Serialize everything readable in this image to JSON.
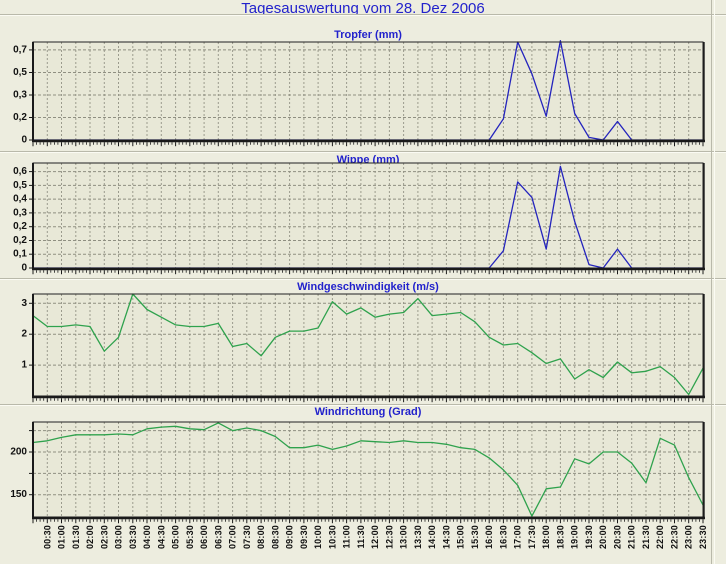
{
  "page": {
    "title": "Tagesauswertung vom 28. Dez 2006"
  },
  "theme": {
    "page_bg": "#ededdf",
    "plot_bg": "#e8e8d7",
    "grid_vertical": "#9b9b8d",
    "grid_horizontal": "#8f8f81",
    "axis_color": "#1a1a1a",
    "title_color": "#2222cc",
    "rain_line_color": "#2424bd",
    "wind_line_color": "#2fa24d"
  },
  "x_axis": {
    "tick_interval_minutes": 30,
    "first_data_point_time": "00:00",
    "tick_labels": [
      "00:30",
      "01:00",
      "01:30",
      "02:00",
      "02:30",
      "03:00",
      "03:30",
      "04:00",
      "04:30",
      "05:00",
      "05:30",
      "06:00",
      "06:30",
      "07:00",
      "07:30",
      "08:00",
      "08:30",
      "09:00",
      "09:30",
      "10:00",
      "10:30",
      "11:00",
      "11:30",
      "12:00",
      "12:30",
      "13:00",
      "13:30",
      "14:00",
      "14:30",
      "15:00",
      "15:30",
      "16:00",
      "16:30",
      "17:00",
      "17:30",
      "18:00",
      "18:30",
      "19:00",
      "19:30",
      "20:00",
      "20:30",
      "21:00",
      "21:30",
      "22:00",
      "22:30",
      "23:00",
      "23:30"
    ]
  },
  "chart_data": [
    {
      "id": "tropfer",
      "type": "line",
      "title": "Tropfer (mm)",
      "unit": "mm",
      "line_color": "#2424bd",
      "ylim": [
        0,
        0.74
      ],
      "y_ticks": [
        {
          "label": "0,7",
          "value": 0.68
        },
        {
          "label": "0,5",
          "value": 0.51
        },
        {
          "label": "0,3",
          "value": 0.34
        },
        {
          "label": "0,2",
          "value": 0.17
        },
        {
          "label": "0",
          "value": 0
        }
      ],
      "x": {
        "start": "00:00",
        "step_minutes": 30,
        "points": 48
      },
      "values": [
        0,
        0,
        0,
        0,
        0,
        0,
        0,
        0,
        0,
        0,
        0,
        0,
        0,
        0,
        0,
        0,
        0,
        0,
        0,
        0,
        0,
        0,
        0,
        0,
        0,
        0,
        0,
        0,
        0,
        0,
        0,
        0,
        0,
        0.16,
        0.74,
        0.5,
        0.18,
        0.75,
        0.2,
        0.02,
        0,
        0.14,
        0,
        0,
        0,
        0,
        0,
        0
      ]
    },
    {
      "id": "wippe",
      "type": "line",
      "title": "Wippe (mm)",
      "unit": "mm",
      "line_color": "#2424bd",
      "ylim": [
        0,
        0.61
      ],
      "y_ticks": [
        {
          "label": "0,6",
          "value": 0.56
        },
        {
          "label": "0,5",
          "value": 0.48
        },
        {
          "label": "0,4",
          "value": 0.4
        },
        {
          "label": "0,3",
          "value": 0.32
        },
        {
          "label": "0,2",
          "value": 0.24
        },
        {
          "label": "0,2",
          "value": 0.16
        },
        {
          "label": "0,1",
          "value": 0.08
        },
        {
          "label": "0",
          "value": 0
        }
      ],
      "x": {
        "start": "00:00",
        "step_minutes": 30,
        "points": 48
      },
      "values": [
        0,
        0,
        0,
        0,
        0,
        0,
        0,
        0,
        0,
        0,
        0,
        0,
        0,
        0,
        0,
        0,
        0,
        0,
        0,
        0,
        0,
        0,
        0,
        0,
        0,
        0,
        0,
        0,
        0,
        0,
        0,
        0,
        0,
        0.1,
        0.5,
        0.41,
        0.11,
        0.59,
        0.27,
        0.02,
        0,
        0.11,
        0,
        0,
        0,
        0,
        0,
        0
      ]
    },
    {
      "id": "windgeschwindigkeit",
      "type": "line",
      "title": "Windgeschwindigkeit (m/s)",
      "unit": "m/s",
      "line_color": "#2fa24d",
      "ylim": [
        0,
        3.3
      ],
      "y_ticks": [
        {
          "label": "3",
          "value": 3
        },
        {
          "label": "2",
          "value": 2
        },
        {
          "label": "1",
          "value": 1
        }
      ],
      "x": {
        "start": "00:00",
        "step_minutes": 30,
        "points": 48
      },
      "values": [
        2.6,
        2.25,
        2.25,
        2.3,
        2.25,
        1.45,
        1.9,
        3.3,
        2.8,
        2.55,
        2.3,
        2.25,
        2.25,
        2.35,
        1.6,
        1.7,
        1.3,
        1.9,
        2.1,
        2.1,
        2.2,
        3.05,
        2.65,
        2.85,
        2.55,
        2.65,
        2.7,
        3.15,
        2.6,
        2.65,
        2.7,
        2.4,
        1.9,
        1.65,
        1.7,
        1.4,
        1.05,
        1.2,
        0.55,
        0.85,
        0.6,
        1.1,
        0.75,
        0.8,
        0.95,
        0.6,
        0.05,
        0.9
      ]
    },
    {
      "id": "windrichtung",
      "type": "line",
      "title": "Windrichtung (Grad)",
      "unit": "Grad",
      "line_color": "#2fa24d",
      "ylim": [
        124,
        235
      ],
      "y_ticks": [
        {
          "label": "",
          "value": 225
        },
        {
          "label": "200",
          "value": 200
        },
        {
          "label": "",
          "value": 175
        },
        {
          "label": "150",
          "value": 150
        }
      ],
      "x": {
        "start": "00:00",
        "step_minutes": 30,
        "points": 48
      },
      "values": [
        211,
        213,
        217,
        220,
        220,
        220,
        221,
        220,
        227,
        229,
        230,
        227,
        226,
        234,
        225,
        228,
        225,
        218,
        205,
        205,
        208,
        203,
        207,
        213,
        212,
        211,
        213,
        211,
        211,
        209,
        205,
        203,
        193,
        179,
        161,
        125,
        157,
        159,
        192,
        186,
        200,
        200,
        187,
        164,
        216,
        208,
        170,
        138
      ]
    }
  ]
}
